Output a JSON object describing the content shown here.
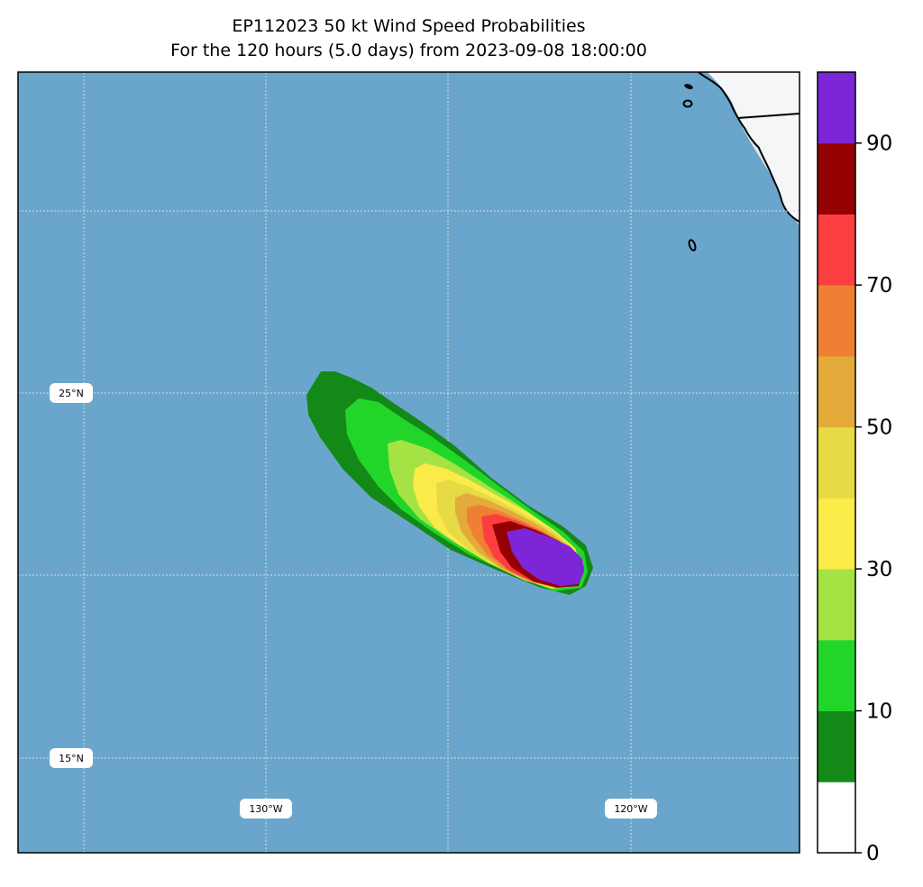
{
  "title": "EP112023 50 kt Wind Speed Probabilities",
  "subtitle": "For the 120 hours (5.0 days) from 2023-09-08 18:00:00",
  "map": {
    "ocean_color": "#6aa6cc",
    "land_color": "#f5f6f7",
    "coast_color": "#000000",
    "lat_labels": [
      "25°N",
      "15°N"
    ],
    "lon_labels": [
      "130°W",
      "120°W"
    ]
  },
  "colorbar": {
    "ticks": [
      "0",
      "10",
      "30",
      "50",
      "70",
      "90"
    ],
    "levels": [
      0,
      5,
      10,
      20,
      30,
      40,
      50,
      60,
      70,
      80,
      90,
      100
    ],
    "colors": [
      "#ffffff",
      "#138a17",
      "#22d629",
      "#a5e344",
      "#fbeb49",
      "#e6da45",
      "#e4ab3a",
      "#ef8033",
      "#fb3f41",
      "#950002",
      "#7d26d8"
    ]
  }
}
